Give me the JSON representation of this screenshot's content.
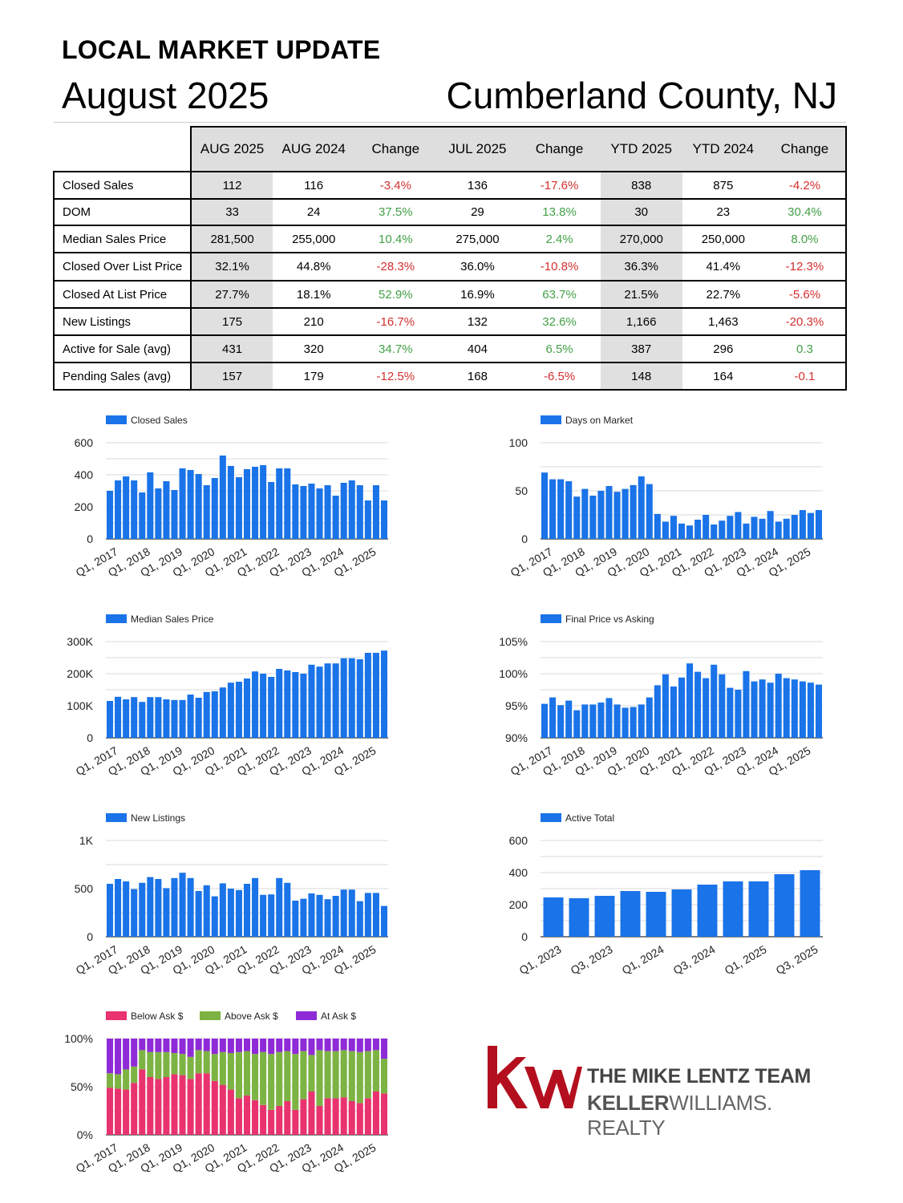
{
  "header": {
    "kicker": "LOCAL MARKET UPDATE",
    "month": "August 2025",
    "county": "Cumberland County, NJ"
  },
  "table": {
    "columns": [
      "AUG 2025",
      "AUG 2024",
      "Change",
      "JUL 2025",
      "Change",
      "YTD 2025",
      "YTD 2024",
      "Change"
    ],
    "rows": [
      {
        "label": "Closed Sales",
        "values": [
          "112",
          "116",
          "-3.4%",
          "136",
          "-17.6%",
          "838",
          "875",
          "-4.2%"
        ],
        "signs": [
          "",
          "",
          "neg",
          "",
          "neg",
          "",
          "",
          "neg"
        ]
      },
      {
        "label": "DOM",
        "values": [
          "33",
          "24",
          "37.5%",
          "29",
          "13.8%",
          "30",
          "23",
          "30.4%"
        ],
        "signs": [
          "",
          "",
          "pos",
          "",
          "pos",
          "",
          "",
          "pos"
        ]
      },
      {
        "label": "Median Sales Price",
        "values": [
          "281,500",
          "255,000",
          "10.4%",
          "275,000",
          "2.4%",
          "270,000",
          "250,000",
          "8.0%"
        ],
        "signs": [
          "",
          "",
          "pos",
          "",
          "pos",
          "",
          "",
          "pos"
        ]
      },
      {
        "label": "Closed Over List Price",
        "values": [
          "32.1%",
          "44.8%",
          "-28.3%",
          "36.0%",
          "-10.8%",
          "36.3%",
          "41.4%",
          "-12.3%"
        ],
        "signs": [
          "",
          "",
          "neg",
          "",
          "neg",
          "",
          "",
          "neg"
        ]
      },
      {
        "label": "Closed At List Price",
        "values": [
          "27.7%",
          "18.1%",
          "52.9%",
          "16.9%",
          "63.7%",
          "21.5%",
          "22.7%",
          "-5.6%"
        ],
        "signs": [
          "",
          "",
          "pos",
          "",
          "pos",
          "",
          "",
          "neg"
        ]
      },
      {
        "label": "New Listings",
        "values": [
          "175",
          "210",
          "-16.7%",
          "132",
          "32.6%",
          "1,166",
          "1,463",
          "-20.3%"
        ],
        "signs": [
          "",
          "",
          "neg",
          "",
          "pos",
          "",
          "",
          "neg"
        ]
      },
      {
        "label": "Active for Sale (avg)",
        "values": [
          "431",
          "320",
          "34.7%",
          "404",
          "6.5%",
          "387",
          "296",
          "0.3"
        ],
        "signs": [
          "",
          "",
          "pos",
          "",
          "pos",
          "",
          "",
          "pos"
        ]
      },
      {
        "label": "Pending Sales (avg)",
        "values": [
          "157",
          "179",
          "-12.5%",
          "168",
          "-6.5%",
          "148",
          "164",
          "-0.1"
        ],
        "signs": [
          "",
          "",
          "neg",
          "",
          "neg",
          "",
          "",
          "neg"
        ]
      }
    ]
  },
  "colors": {
    "bar": "#1a73e8",
    "below": "#e8336e",
    "above": "#7cb342",
    "at": "#8e2bd6",
    "negative": "#d32f2f",
    "positive": "#43a047"
  },
  "chart_data": [
    {
      "id": "closed-sales",
      "type": "bar",
      "legend": [
        "Closed Sales"
      ],
      "ticks": [
        "0",
        "200",
        "400",
        "600"
      ],
      "ylim": [
        0,
        600
      ],
      "xlabels": [
        "Q1, 2017",
        "Q1, 2018",
        "Q1, 2019",
        "Q1, 2020",
        "Q1, 2021",
        "Q1, 2022",
        "Q1, 2023",
        "Q1, 2024",
        "Q1, 2025"
      ],
      "values": [
        300,
        365,
        390,
        365,
        290,
        415,
        315,
        360,
        305,
        440,
        430,
        405,
        335,
        380,
        520,
        455,
        385,
        435,
        450,
        460,
        355,
        440,
        440,
        340,
        330,
        345,
        315,
        335,
        270,
        350,
        365,
        335,
        240,
        335,
        240
      ]
    },
    {
      "id": "days-on-market",
      "type": "bar",
      "legend": [
        "Days on Market"
      ],
      "ticks": [
        "0",
        "50",
        "100"
      ],
      "ylim": [
        0,
        100
      ],
      "xlabels": [
        "Q1, 2017",
        "Q1, 2018",
        "Q1, 2019",
        "Q1, 2020",
        "Q1, 2021",
        "Q1, 2022",
        "Q1, 2023",
        "Q1, 2024",
        "Q1, 2025"
      ],
      "values": [
        69,
        62,
        62,
        60,
        44,
        52,
        45,
        50,
        55,
        49,
        52,
        56,
        65,
        57,
        26,
        18,
        24,
        16,
        14,
        20,
        25,
        15,
        19,
        24,
        28,
        16,
        23,
        21,
        29,
        18,
        21,
        25,
        30,
        27,
        30
      ]
    },
    {
      "id": "median-sales-price",
      "type": "bar",
      "legend": [
        "Median Sales Price"
      ],
      "ticks": [
        "0",
        "100K",
        "200K",
        "300K"
      ],
      "ylim": [
        0,
        300000
      ],
      "xlabels": [
        "Q1, 2017",
        "Q1, 2018",
        "Q1, 2019",
        "Q1, 2020",
        "Q1, 2021",
        "Q1, 2022",
        "Q1, 2023",
        "Q1, 2024",
        "Q1, 2025"
      ],
      "values": [
        115000,
        128000,
        120000,
        127000,
        112000,
        127000,
        127000,
        120000,
        118000,
        118000,
        135000,
        125000,
        143000,
        145000,
        157000,
        172000,
        175000,
        185000,
        207000,
        200000,
        190000,
        215000,
        210000,
        205000,
        200000,
        228000,
        222000,
        232000,
        232000,
        248000,
        248000,
        245000,
        265000,
        265000,
        272000
      ]
    },
    {
      "id": "final-price-vs-asking",
      "type": "bar",
      "legend": [
        "Final Price vs Asking"
      ],
      "ticks": [
        "90%",
        "95%",
        "100%",
        "105%"
      ],
      "ylim": [
        90,
        105
      ],
      "xlabels": [
        "Q1, 2017",
        "Q1, 2018",
        "Q1, 2019",
        "Q1, 2020",
        "Q1, 2021",
        "Q1, 2022",
        "Q1, 2023",
        "Q1, 2024",
        "Q1, 2025"
      ],
      "values": [
        95.3,
        96.3,
        95.1,
        95.8,
        94.3,
        95.2,
        95.2,
        95.5,
        96.2,
        95.2,
        94.7,
        94.8,
        95.2,
        96.3,
        98.2,
        99.9,
        98.0,
        99.4,
        101.6,
        100.3,
        99.3,
        101.4,
        99.9,
        97.8,
        97.5,
        100.4,
        98.8,
        99.1,
        98.6,
        100.0,
        99.3,
        99.1,
        98.8,
        98.6,
        98.3
      ]
    },
    {
      "id": "new-listings",
      "type": "bar",
      "legend": [
        "New Listings"
      ],
      "ticks": [
        "0",
        "500",
        "1K"
      ],
      "ylim": [
        0,
        1000
      ],
      "xlabels": [
        "Q1, 2017",
        "Q1, 2018",
        "Q1, 2019",
        "Q1, 2020",
        "Q1, 2021",
        "Q1, 2022",
        "Q1, 2023",
        "Q1, 2024",
        "Q1, 2025"
      ],
      "values": [
        550,
        600,
        575,
        495,
        560,
        620,
        600,
        505,
        610,
        665,
        610,
        475,
        535,
        420,
        555,
        500,
        485,
        550,
        610,
        435,
        440,
        610,
        560,
        375,
        395,
        450,
        435,
        390,
        425,
        490,
        490,
        370,
        455,
        455,
        320
      ]
    },
    {
      "id": "active-total",
      "type": "bar",
      "legend": [
        "Active Total"
      ],
      "ticks": [
        "0",
        "200",
        "400",
        "600"
      ],
      "ylim": [
        0,
        600
      ],
      "xlabels": [
        "Q1, 2023",
        "Q3, 2023",
        "Q1, 2024",
        "Q3, 2024",
        "Q1, 2025",
        "Q3, 2025"
      ],
      "values": [
        245,
        240,
        255,
        285,
        280,
        295,
        325,
        345,
        345,
        390,
        415
      ]
    },
    {
      "id": "ask-mix",
      "type": "stacked-bar",
      "legend": [
        "Below Ask $",
        "Above Ask $",
        "At Ask $"
      ],
      "ticks": [
        "0%",
        "50%",
        "100%"
      ],
      "ylim": [
        0,
        100
      ],
      "xlabels": [
        "Q1, 2017",
        "Q1, 2018",
        "Q1, 2019",
        "Q1, 2020",
        "Q1, 2021",
        "Q1, 2022",
        "Q1, 2023",
        "Q1, 2024",
        "Q1, 2025"
      ],
      "series": [
        {
          "name": "Below Ask $",
          "values": [
            49,
            48,
            47,
            54,
            68,
            60,
            58,
            60,
            63,
            62,
            58,
            64,
            64,
            56,
            52,
            47,
            38,
            41,
            36,
            31,
            26,
            30,
            35,
            26,
            37,
            45,
            30,
            38,
            38,
            39,
            35,
            33,
            38,
            45,
            43
          ]
        },
        {
          "name": "Above Ask $",
          "values": [
            15,
            15,
            21,
            17,
            20,
            26,
            28,
            26,
            22,
            22,
            23,
            24,
            23,
            28,
            34,
            38,
            48,
            46,
            48,
            55,
            58,
            56,
            52,
            58,
            50,
            38,
            58,
            49,
            49,
            49,
            52,
            53,
            49,
            43,
            36
          ]
        },
        {
          "name": "At Ask $",
          "values": [
            36,
            37,
            32,
            29,
            12,
            14,
            14,
            14,
            15,
            16,
            19,
            12,
            13,
            16,
            14,
            15,
            14,
            13,
            16,
            14,
            16,
            14,
            13,
            16,
            13,
            17,
            12,
            13,
            13,
            12,
            13,
            14,
            13,
            12,
            21
          ]
        }
      ]
    }
  ]
}
